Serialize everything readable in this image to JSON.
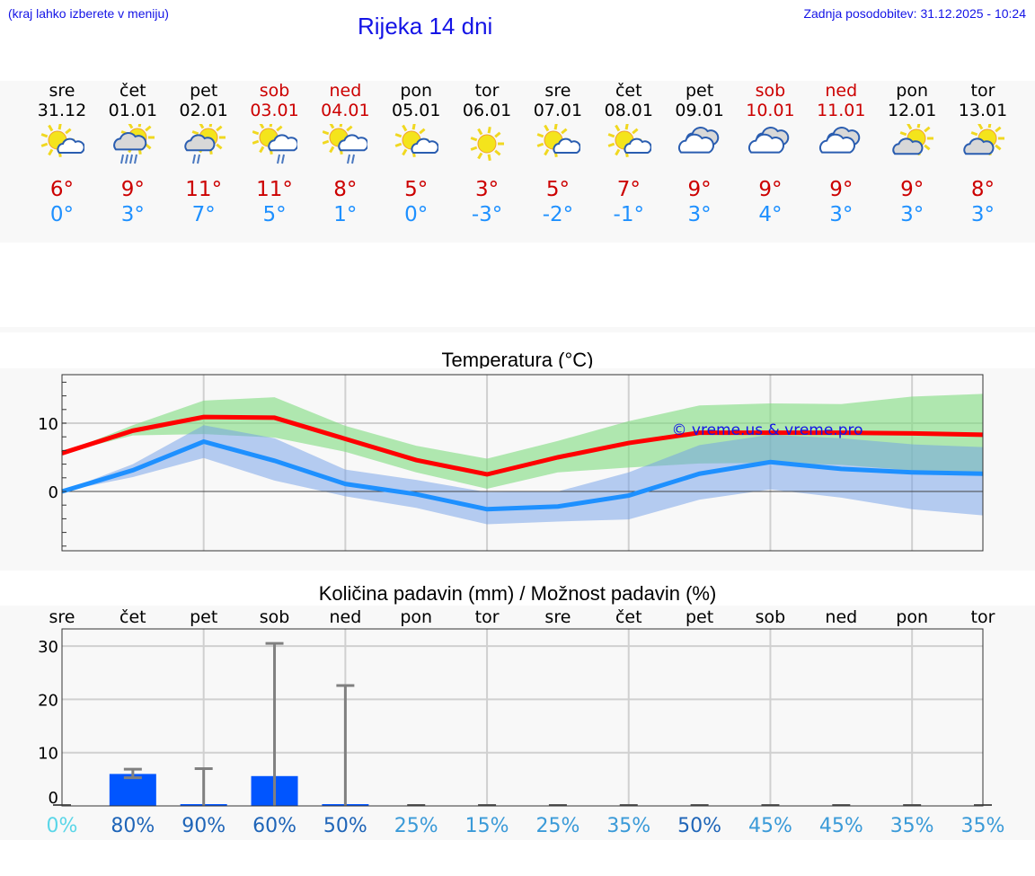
{
  "header": {
    "hint": "(kraj lahko izberete v meniju)",
    "title": "Rijeka 14 dni",
    "updated": "Zadnja posodobitev: 31.12.2025 - 10:24"
  },
  "days": [
    {
      "name": "sre",
      "date": "31.12",
      "weekend": false,
      "icon": "sun-cloud-icon",
      "tmax": "6°",
      "tmin": "0°"
    },
    {
      "name": "čet",
      "date": "01.01",
      "weekend": false,
      "icon": "sun-cloud-heavy-rain-icon",
      "tmax": "9°",
      "tmin": "3°"
    },
    {
      "name": "pet",
      "date": "02.01",
      "weekend": false,
      "icon": "sun-cloud-rain-icon",
      "tmax": "11°",
      "tmin": "7°"
    },
    {
      "name": "sob",
      "date": "03.01",
      "weekend": true,
      "icon": "sun-cloud-light-rain-icon",
      "tmax": "11°",
      "tmin": "5°"
    },
    {
      "name": "ned",
      "date": "04.01",
      "weekend": true,
      "icon": "sun-cloud-light-rain-icon",
      "tmax": "8°",
      "tmin": "1°"
    },
    {
      "name": "pon",
      "date": "05.01",
      "weekend": false,
      "icon": "sun-cloud-icon",
      "tmax": "5°",
      "tmin": "0°"
    },
    {
      "name": "tor",
      "date": "06.01",
      "weekend": false,
      "icon": "sun-icon",
      "tmax": "3°",
      "tmin": "-3°"
    },
    {
      "name": "sre",
      "date": "07.01",
      "weekend": false,
      "icon": "sun-cloud-icon",
      "tmax": "5°",
      "tmin": "-2°"
    },
    {
      "name": "čet",
      "date": "08.01",
      "weekend": false,
      "icon": "sun-cloud-icon",
      "tmax": "7°",
      "tmin": "-1°"
    },
    {
      "name": "pet",
      "date": "09.01",
      "weekend": false,
      "icon": "overcast-icon",
      "tmax": "9°",
      "tmin": "3°"
    },
    {
      "name": "sob",
      "date": "10.01",
      "weekend": true,
      "icon": "overcast-icon",
      "tmax": "9°",
      "tmin": "4°"
    },
    {
      "name": "ned",
      "date": "11.01",
      "weekend": true,
      "icon": "overcast-icon",
      "tmax": "9°",
      "tmin": "3°"
    },
    {
      "name": "pon",
      "date": "12.01",
      "weekend": false,
      "icon": "cloud-sun-icon",
      "tmax": "9°",
      "tmin": "3°"
    },
    {
      "name": "tor",
      "date": "13.01",
      "weekend": false,
      "icon": "cloud-sun-icon",
      "tmax": "8°",
      "tmin": "3°"
    }
  ],
  "colors": {
    "max": "#ff0000",
    "min": "#1e90ff",
    "max_band": "#aee9ae",
    "min_band": "#aec8f2",
    "overlap_band": "#7cc8a8",
    "bar": "#0055ff",
    "errbar": "#808080",
    "weekend_text": "#cc0000",
    "header_text": "#1414e6"
  },
  "chart_data": [
    {
      "type": "line",
      "title": "Temperatura (°C)",
      "xlabel": "",
      "ylabel": "",
      "ylim": [
        -8.7,
        17
      ],
      "yticks": [
        0,
        10
      ],
      "grid": true,
      "watermark": "© vreme.us & vreme.pro",
      "categories": [
        "31.12",
        "01.01",
        "02.01",
        "03.01",
        "04.01",
        "05.01",
        "06.01",
        "07.01",
        "08.01",
        "09.01",
        "10.01",
        "11.01",
        "12.01",
        "13.01"
      ],
      "series": [
        {
          "name": "max",
          "values": [
            5.6,
            8.9,
            10.9,
            10.8,
            7.7,
            4.6,
            2.5,
            5.0,
            7.1,
            8.6,
            8.6,
            8.6,
            8.5,
            8.3
          ],
          "band_low": [
            5.6,
            8.2,
            8.4,
            7.9,
            5.8,
            2.8,
            0.4,
            2.8,
            3.5,
            4.1,
            4.2,
            3.9,
            3.1,
            2.9
          ],
          "band_high": [
            5.6,
            9.7,
            13.3,
            13.8,
            9.6,
            6.7,
            4.8,
            7.4,
            10.3,
            12.6,
            12.9,
            12.8,
            13.9,
            14.3
          ]
        },
        {
          "name": "min",
          "values": [
            0,
            3.1,
            7.3,
            4.5,
            1.1,
            -0.4,
            -2.6,
            -2.2,
            -0.6,
            2.6,
            4.3,
            3.3,
            2.8,
            2.6
          ],
          "band_low": [
            0,
            2.1,
            4.9,
            1.6,
            -0.7,
            -2.4,
            -4.8,
            -4.4,
            -4.1,
            -1.2,
            0.3,
            -0.9,
            -2.6,
            -3.5
          ],
          "band_high": [
            0,
            4.0,
            9.7,
            7.8,
            3.2,
            1.7,
            -0.1,
            0.0,
            2.8,
            6.8,
            8.3,
            7.8,
            6.9,
            6.5
          ]
        }
      ]
    },
    {
      "type": "bar",
      "title": "Količina padavin (mm) / Možnost padavin (%)",
      "xlabel": "",
      "ylabel": "",
      "ylim": [
        0,
        33
      ],
      "yticks": [
        0,
        10,
        20,
        30
      ],
      "grid": true,
      "categories": [
        "sre",
        "čet",
        "pet",
        "sob",
        "ned",
        "pon",
        "tor",
        "sre",
        "čet",
        "pet",
        "sob",
        "ned",
        "pon",
        "tor"
      ],
      "series": [
        {
          "name": "precipitation_mm",
          "values": [
            0,
            6.0,
            0.3,
            5.6,
            0.1,
            0,
            0,
            0,
            0,
            0,
            0,
            0,
            0,
            0
          ]
        },
        {
          "name": "precip_error_high",
          "values": [
            0,
            6.9,
            7.0,
            30.5,
            22.6,
            0,
            0,
            0,
            0,
            0,
            0,
            0,
            0,
            0
          ]
        },
        {
          "name": "precip_error_low",
          "values": [
            0,
            5.3,
            0,
            0,
            0,
            0,
            0,
            0,
            0,
            0,
            0,
            0,
            0,
            0
          ]
        },
        {
          "name": "probability_pct",
          "values": [
            0,
            80,
            90,
            60,
            50,
            25,
            15,
            25,
            35,
            50,
            45,
            45,
            35,
            35
          ]
        }
      ],
      "probability_labels": [
        "0%",
        "80%",
        "90%",
        "60%",
        "50%",
        "25%",
        "15%",
        "25%",
        "35%",
        "50%",
        "45%",
        "45%",
        "35%",
        "35%"
      ]
    }
  ]
}
